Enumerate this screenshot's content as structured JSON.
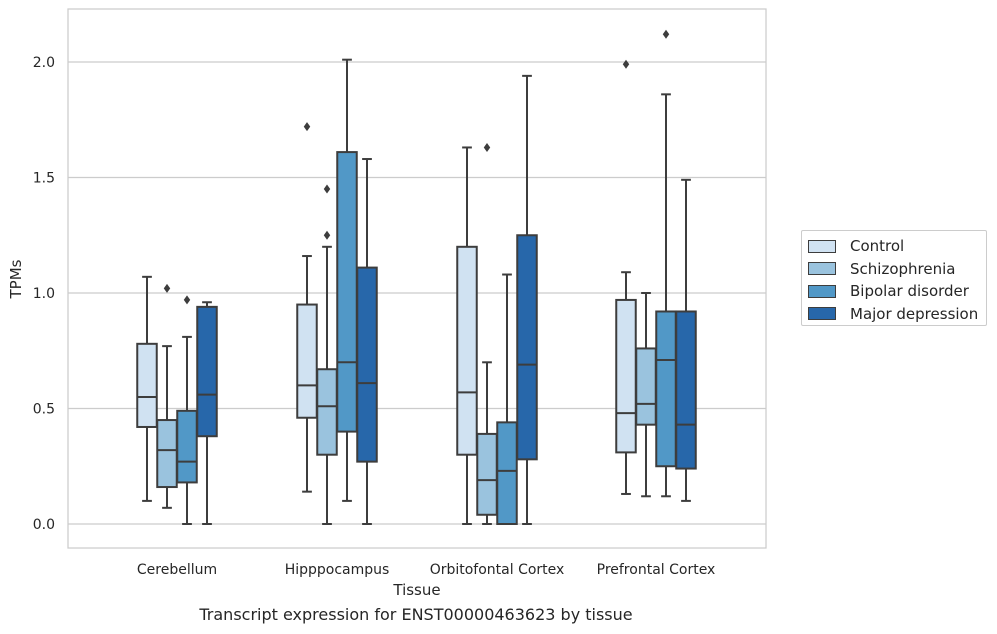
{
  "chart_data": {
    "type": "box",
    "title": "",
    "xlabel": "Tissue",
    "ylabel": "TPMs",
    "caption": "Transcript expression for ENST00000463623 by tissue",
    "ylim": [
      -0.1,
      2.23
    ],
    "yticks": [
      0.0,
      0.5,
      1.0,
      1.5,
      2.0
    ],
    "ytick_labels": [
      "0.0",
      "0.5",
      "1.0",
      "1.5",
      "2.0"
    ],
    "grid": "horizontal",
    "legend_position": "right",
    "categories": [
      "Cerebellum",
      "Hipppocampus",
      "Orbitofontal Cortex",
      "Prefrontal Cortex"
    ],
    "series": [
      {
        "name": "Control",
        "color": "#d0e2f2",
        "boxes": [
          {
            "whisker_low": 0.1,
            "q1": 0.42,
            "median": 0.55,
            "q3": 0.78,
            "whisker_high": 1.07,
            "outliers": []
          },
          {
            "whisker_low": 0.14,
            "q1": 0.46,
            "median": 0.6,
            "q3": 0.95,
            "whisker_high": 1.16,
            "outliers": [
              1.72
            ]
          },
          {
            "whisker_low": 0.0,
            "q1": 0.3,
            "median": 0.57,
            "q3": 1.2,
            "whisker_high": 1.63,
            "outliers": []
          },
          {
            "whisker_low": 0.13,
            "q1": 0.31,
            "median": 0.48,
            "q3": 0.97,
            "whisker_high": 1.09,
            "outliers": [
              1.99
            ]
          }
        ]
      },
      {
        "name": "Schizophrenia",
        "color": "#9ac3de",
        "boxes": [
          {
            "whisker_low": 0.07,
            "q1": 0.16,
            "median": 0.32,
            "q3": 0.45,
            "whisker_high": 0.77,
            "outliers": [
              1.02
            ]
          },
          {
            "whisker_low": 0.0,
            "q1": 0.3,
            "median": 0.51,
            "q3": 0.67,
            "whisker_high": 1.2,
            "outliers": [
              1.25,
              1.45
            ]
          },
          {
            "whisker_low": 0.0,
            "q1": 0.04,
            "median": 0.19,
            "q3": 0.39,
            "whisker_high": 0.7,
            "outliers": [
              1.63
            ]
          },
          {
            "whisker_low": 0.12,
            "q1": 0.43,
            "median": 0.52,
            "q3": 0.76,
            "whisker_high": 1.0,
            "outliers": []
          }
        ]
      },
      {
        "name": "Bipolar disorder",
        "color": "#5198c7",
        "boxes": [
          {
            "whisker_low": 0.0,
            "q1": 0.18,
            "median": 0.27,
            "q3": 0.49,
            "whisker_high": 0.81,
            "outliers": [
              0.97
            ]
          },
          {
            "whisker_low": 0.1,
            "q1": 0.4,
            "median": 0.7,
            "q3": 1.61,
            "whisker_high": 2.01,
            "outliers": []
          },
          {
            "whisker_low": 0.0,
            "q1": 0.0,
            "median": 0.23,
            "q3": 0.44,
            "whisker_high": 1.08,
            "outliers": []
          },
          {
            "whisker_low": 0.12,
            "q1": 0.25,
            "median": 0.71,
            "q3": 0.92,
            "whisker_high": 1.86,
            "outliers": [
              2.12
            ]
          }
        ]
      },
      {
        "name": "Major depression",
        "color": "#2767aa",
        "boxes": [
          {
            "whisker_low": 0.0,
            "q1": 0.38,
            "median": 0.56,
            "q3": 0.94,
            "whisker_high": 0.96,
            "outliers": []
          },
          {
            "whisker_low": 0.0,
            "q1": 0.27,
            "median": 0.61,
            "q3": 1.11,
            "whisker_high": 1.58,
            "outliers": []
          },
          {
            "whisker_low": 0.0,
            "q1": 0.28,
            "median": 0.69,
            "q3": 1.25,
            "whisker_high": 1.94,
            "outliers": []
          },
          {
            "whisker_low": 0.1,
            "q1": 0.24,
            "median": 0.43,
            "q3": 0.92,
            "whisker_high": 1.49,
            "outliers": []
          }
        ]
      }
    ]
  }
}
